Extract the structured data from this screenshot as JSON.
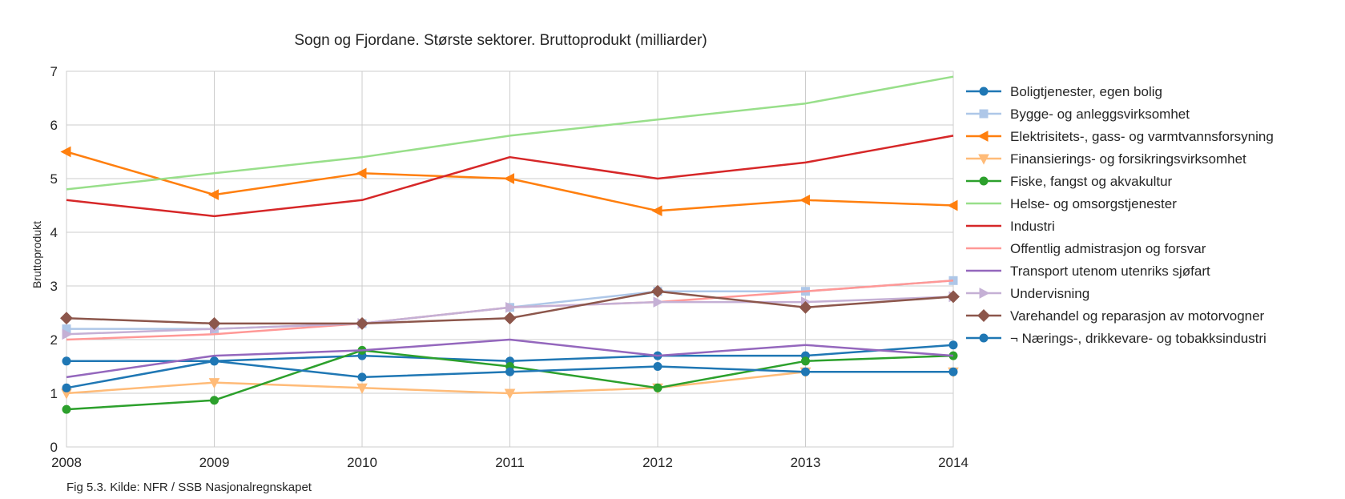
{
  "chart_data": {
    "type": "line",
    "title": "Sogn og Fjordane. Største sektorer. Bruttoprodukt (milliarder)",
    "xlabel": "",
    "ylabel": "Bruttoprodukt",
    "x": [
      2008,
      2009,
      2010,
      2011,
      2012,
      2013,
      2014
    ],
    "x_ticks": [
      "2008",
      "2009",
      "2010",
      "2011",
      "2012",
      "2013",
      "2014"
    ],
    "xlim": [
      2008,
      2014
    ],
    "ylim": [
      0,
      7
    ],
    "y_ticks": [
      "0",
      "1",
      "2",
      "3",
      "4",
      "5",
      "6",
      "7"
    ],
    "grid": true,
    "legend_position": "right-outside",
    "series": [
      {
        "name": "Boligtjenester, egen bolig",
        "color": "#1f77b4",
        "marker": "circle",
        "values": [
          1.6,
          1.6,
          1.7,
          1.6,
          1.7,
          1.7,
          1.9
        ]
      },
      {
        "name": "Bygge- og anleggsvirksomhet",
        "color": "#aec7e8",
        "marker": "square",
        "values": [
          2.2,
          2.2,
          2.3,
          2.6,
          2.9,
          2.9,
          3.1
        ]
      },
      {
        "name": "Elektrisitets-, gass- og varmtvannsforsyning",
        "color": "#ff7f0e",
        "marker": "triangle-left",
        "values": [
          5.5,
          4.7,
          5.1,
          5.0,
          4.4,
          4.6,
          4.5
        ]
      },
      {
        "name": "Finansierings- og forsikringsvirksomhet",
        "color": "#ffbb78",
        "marker": "triangle-down",
        "values": [
          1.0,
          1.2,
          1.1,
          1.0,
          1.1,
          1.4,
          1.4
        ]
      },
      {
        "name": "Fiske, fangst og akvakultur",
        "color": "#2ca02c",
        "marker": "circle",
        "values": [
          0.7,
          0.87,
          1.8,
          1.5,
          1.1,
          1.6,
          1.7
        ]
      },
      {
        "name": "Helse- og omsorgstjenester",
        "color": "#98df8a",
        "marker": "none",
        "values": [
          4.8,
          5.1,
          5.4,
          5.8,
          6.1,
          6.4,
          6.9
        ]
      },
      {
        "name": "Industri",
        "color": "#d62728",
        "marker": "none",
        "values": [
          4.6,
          4.3,
          4.6,
          5.4,
          5.0,
          5.3,
          5.8
        ]
      },
      {
        "name": "Offentlig admistrasjon og forsvar",
        "color": "#ff9896",
        "marker": "none",
        "values": [
          2.0,
          2.1,
          2.3,
          2.6,
          2.7,
          2.9,
          3.1
        ]
      },
      {
        "name": "Transport utenom utenriks sjøfart",
        "color": "#9467bd",
        "marker": "none",
        "values": [
          1.3,
          1.7,
          1.8,
          2.0,
          1.7,
          1.9,
          1.7
        ]
      },
      {
        "name": "Undervisning",
        "color": "#c5b0d5",
        "marker": "triangle-right",
        "values": [
          2.1,
          2.2,
          2.3,
          2.6,
          2.7,
          2.7,
          2.8
        ]
      },
      {
        "name": "Varehandel og reparasjon av motorvogner",
        "color": "#8c564b",
        "marker": "diamond",
        "values": [
          2.4,
          2.3,
          2.3,
          2.4,
          2.9,
          2.6,
          2.8
        ]
      },
      {
        "name": "¬ Nærings-, drikkevare- og tobakksindustri",
        "color": "#1f77b4",
        "marker": "circle",
        "values": [
          1.1,
          1.6,
          1.3,
          1.4,
          1.5,
          1.4,
          1.4
        ]
      }
    ]
  },
  "caption": "Fig 5.3. Kilde: NFR / SSB Nasjonalregnskapet"
}
